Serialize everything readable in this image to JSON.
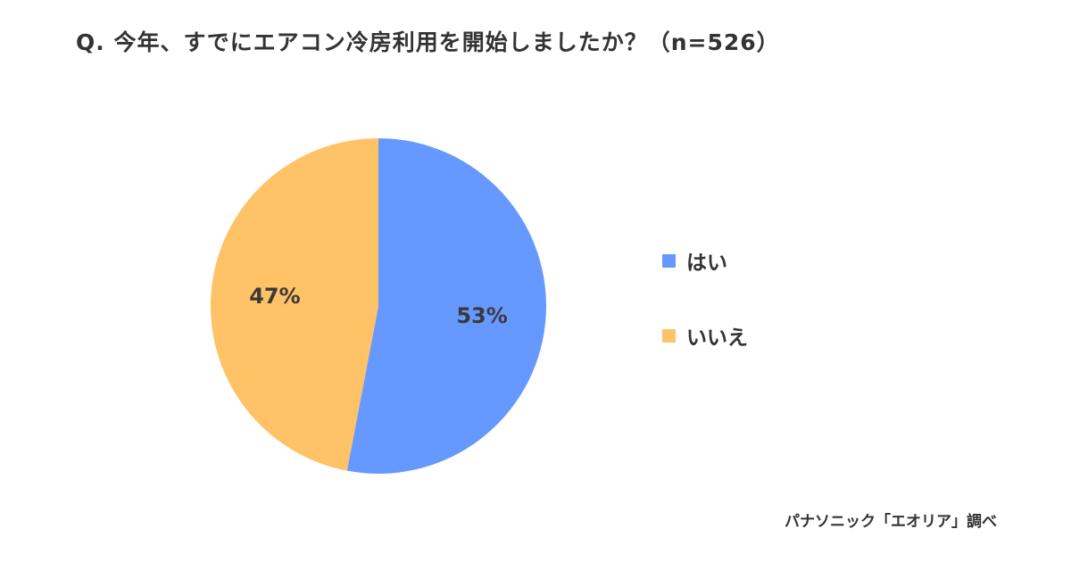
{
  "title": "Q. 今年、すでにエアコン冷房利用を開始しましたか？（n=526）",
  "source": "パナソニック「エオリア」調べ",
  "chart_data": {
    "type": "pie",
    "title": "Q. 今年、すでにエアコン冷房利用を開始しましたか？（n=526）",
    "n": 526,
    "categories": [
      "はい",
      "いいえ"
    ],
    "values": [
      53,
      47
    ],
    "value_labels": [
      "53%",
      "47%"
    ],
    "colors": [
      "#6699FF",
      "#FFC266"
    ],
    "start_angle": "12 o'clock",
    "direction": "clockwise",
    "legend_position": "right"
  }
}
